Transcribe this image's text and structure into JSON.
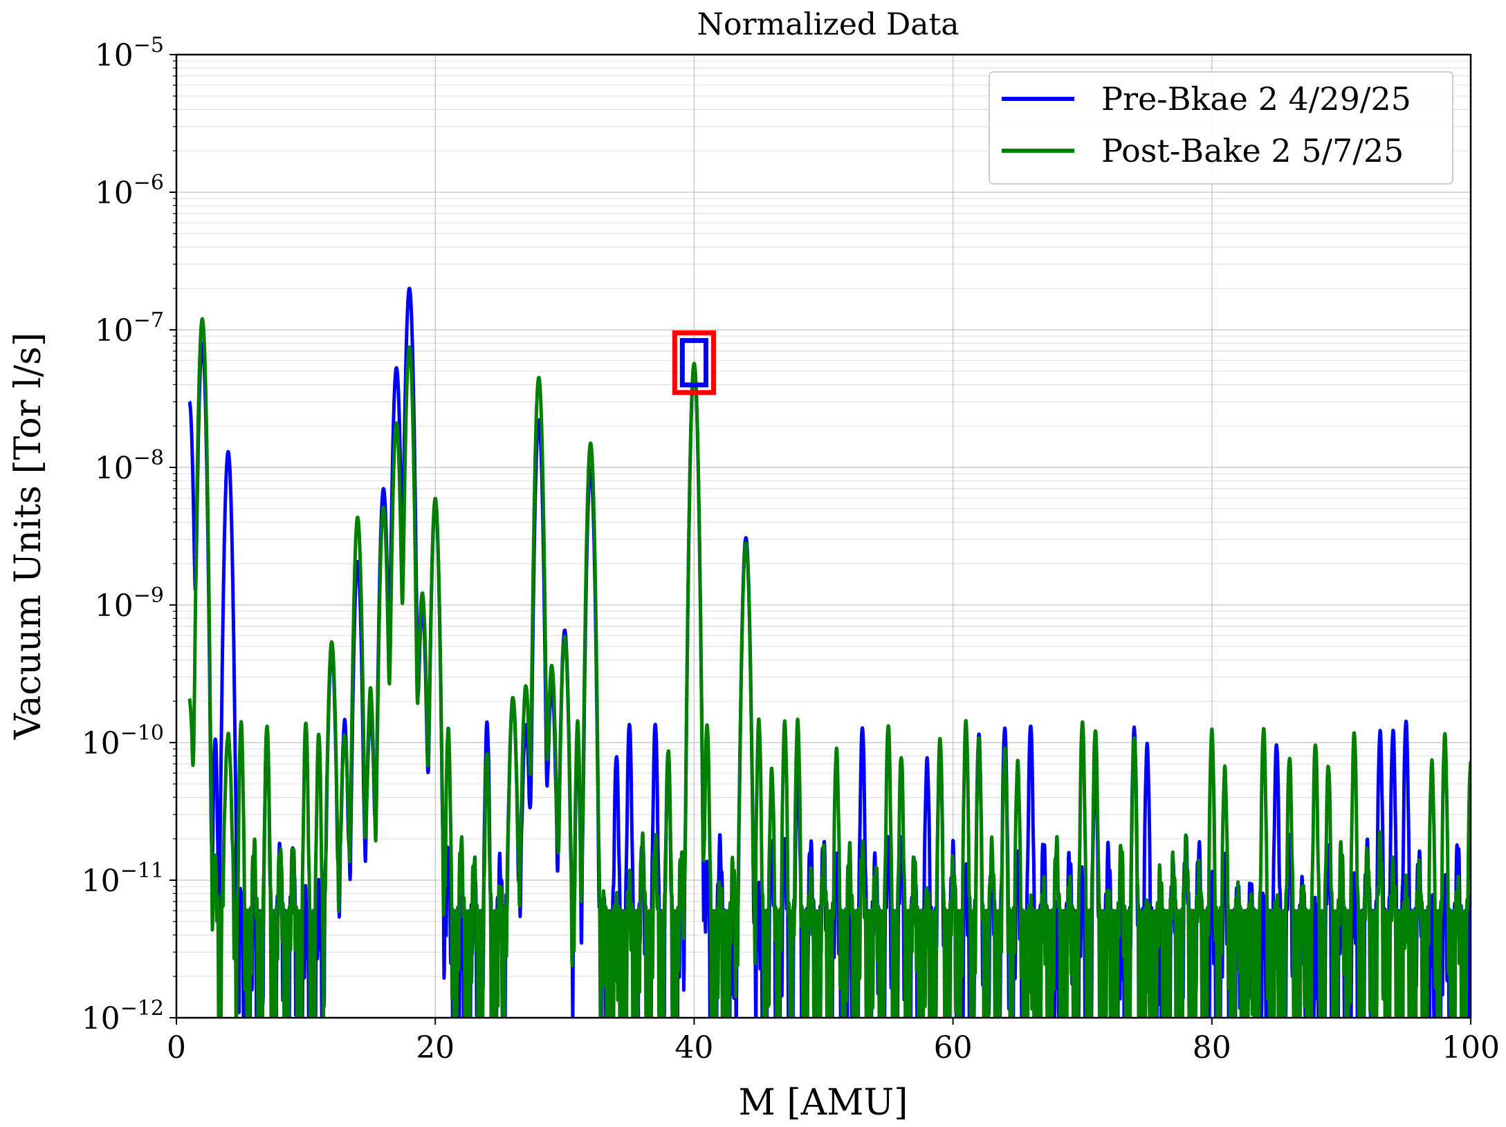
{
  "chart_data": {
    "type": "line",
    "title": "Normalized Data",
    "xlabel": "M [AMU]",
    "ylabel": "Vacuum Units [Tor l/s]",
    "xlim": [
      0,
      100
    ],
    "ylim": [
      1e-12,
      1e-05
    ],
    "yscale": "log",
    "grid": true,
    "legend_position": "top-right",
    "x_ticks": [
      0,
      20,
      40,
      60,
      80,
      100
    ],
    "y_tick_exponents": [
      -12,
      -11,
      -10,
      -9,
      -8,
      -7,
      -6,
      -5
    ],
    "y_tick_base": "10",
    "y_tick_signs": [
      "−",
      "−",
      "−",
      "−",
      "−",
      "−",
      "−",
      "−"
    ],
    "y_tick_exps": [
      "12",
      "11",
      "10",
      "9",
      "8",
      "7",
      "6",
      "5"
    ],
    "noise_floor_approx": 1e-11,
    "noise_spike_max_approx": 1.5e-10,
    "series": [
      {
        "name": "Pre-Bkae 2 4/29/25",
        "color": "#0000ff",
        "peaks": [
          {
            "x": 1,
            "y": 3e-08
          },
          {
            "x": 2,
            "y": 8e-08
          },
          {
            "x": 4,
            "y": 1.3e-08
          },
          {
            "x": 12,
            "y": 4.5e-10
          },
          {
            "x": 13,
            "y": 8e-11
          },
          {
            "x": 14,
            "y": 2e-09
          },
          {
            "x": 15,
            "y": 1.5e-10
          },
          {
            "x": 16,
            "y": 7e-09
          },
          {
            "x": 17,
            "y": 5.3e-08
          },
          {
            "x": 18,
            "y": 2e-07
          },
          {
            "x": 19,
            "y": 9e-10
          },
          {
            "x": 20,
            "y": 5.5e-09
          },
          {
            "x": 26,
            "y": 2e-10
          },
          {
            "x": 27,
            "y": 1.2e-10
          },
          {
            "x": 28,
            "y": 2.2e-08
          },
          {
            "x": 29,
            "y": 2.5e-10
          },
          {
            "x": 30,
            "y": 6.5e-10
          },
          {
            "x": 32,
            "y": 1e-08
          },
          {
            "x": 40,
            "y": 5.5e-08
          },
          {
            "x": 44,
            "y": 3e-09
          }
        ]
      },
      {
        "name": "Post-Bake 2 5/7/25",
        "color": "#008000",
        "peaks": [
          {
            "x": 1,
            "y": 2e-10
          },
          {
            "x": 2,
            "y": 1.2e-07
          },
          {
            "x": 4,
            "y": 1e-10
          },
          {
            "x": 12,
            "y": 5.2e-10
          },
          {
            "x": 13,
            "y": 1e-10
          },
          {
            "x": 14,
            "y": 4.2e-09
          },
          {
            "x": 15,
            "y": 1.5e-10
          },
          {
            "x": 16,
            "y": 5e-09
          },
          {
            "x": 17,
            "y": 2.1e-08
          },
          {
            "x": 18,
            "y": 7.5e-08
          },
          {
            "x": 19,
            "y": 1.2e-09
          },
          {
            "x": 20,
            "y": 5.8e-09
          },
          {
            "x": 26,
            "y": 2e-10
          },
          {
            "x": 27,
            "y": 2.5e-10
          },
          {
            "x": 28,
            "y": 4.5e-08
          },
          {
            "x": 29,
            "y": 3.5e-10
          },
          {
            "x": 30,
            "y": 5.8e-10
          },
          {
            "x": 32,
            "y": 1.5e-08
          },
          {
            "x": 40,
            "y": 5.7e-08
          },
          {
            "x": 44,
            "y": 2.8e-09
          }
        ]
      }
    ],
    "annotation": {
      "type": "highlight-box",
      "x": [
        38.5,
        41.5
      ],
      "y": [
        3.5e-08,
        9.5e-08
      ],
      "outer_color": "#ff0000",
      "inner_color": "#0000ff"
    }
  }
}
